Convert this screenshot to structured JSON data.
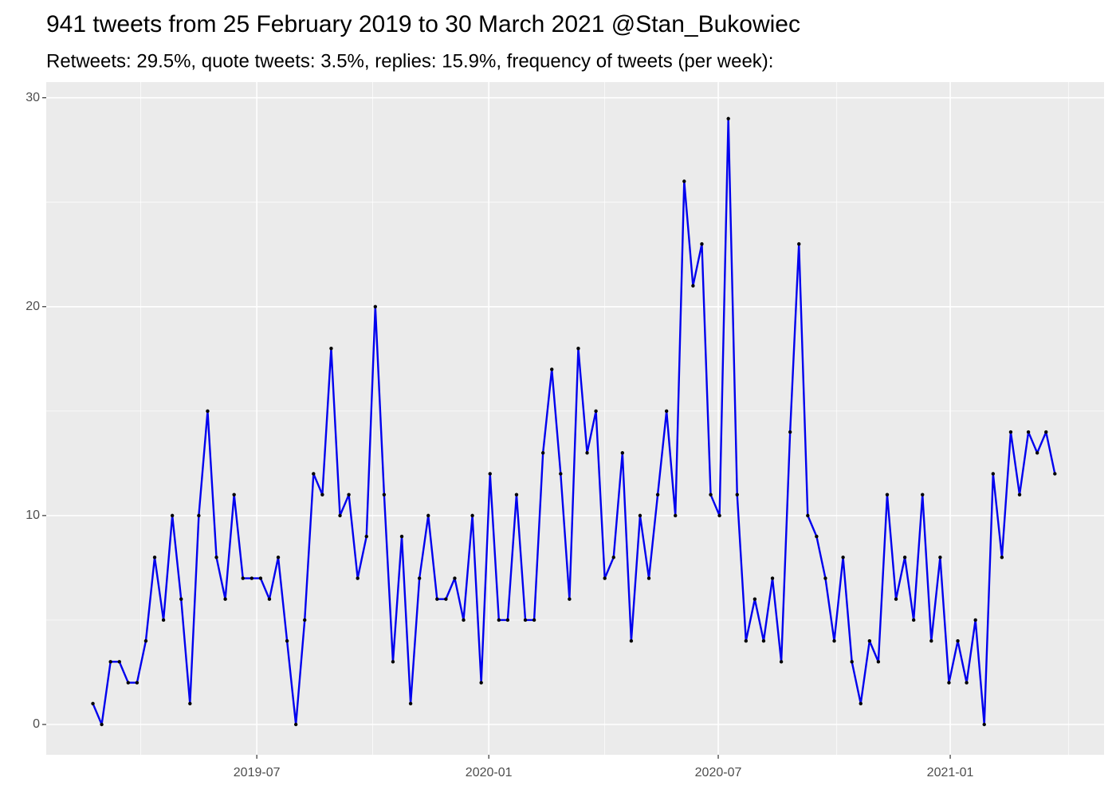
{
  "chart_data": {
    "type": "line",
    "title": "941 tweets from 25 February 2019 to 30 March 2021 @Stan_Bukowiec",
    "subtitle": "Retweets: 29.5%, quote tweets: 3.5%, replies: 15.9%, frequency of tweets (per week):",
    "x": [
      "2019-02-21",
      "2019-02-28",
      "2019-03-07",
      "2019-03-14",
      "2019-03-21",
      "2019-03-28",
      "2019-04-04",
      "2019-04-11",
      "2019-04-18",
      "2019-04-25",
      "2019-05-02",
      "2019-05-09",
      "2019-05-16",
      "2019-05-23",
      "2019-05-30",
      "2019-06-06",
      "2019-06-13",
      "2019-06-20",
      "2019-06-27",
      "2019-07-04",
      "2019-07-11",
      "2019-07-18",
      "2019-07-25",
      "2019-08-01",
      "2019-08-08",
      "2019-08-15",
      "2019-08-22",
      "2019-08-29",
      "2019-09-05",
      "2019-09-12",
      "2019-09-19",
      "2019-09-26",
      "2019-10-03",
      "2019-10-10",
      "2019-10-17",
      "2019-10-24",
      "2019-10-31",
      "2019-11-07",
      "2019-11-14",
      "2019-11-21",
      "2019-11-28",
      "2019-12-05",
      "2019-12-12",
      "2019-12-19",
      "2019-12-26",
      "2020-01-02",
      "2020-01-09",
      "2020-01-16",
      "2020-01-23",
      "2020-01-30",
      "2020-02-06",
      "2020-02-13",
      "2020-02-20",
      "2020-02-27",
      "2020-03-05",
      "2020-03-12",
      "2020-03-19",
      "2020-03-26",
      "2020-04-02",
      "2020-04-09",
      "2020-04-16",
      "2020-04-23",
      "2020-04-30",
      "2020-05-07",
      "2020-05-14",
      "2020-05-21",
      "2020-05-28",
      "2020-06-04",
      "2020-06-11",
      "2020-06-18",
      "2020-06-25",
      "2020-07-02",
      "2020-07-09",
      "2020-07-16",
      "2020-07-23",
      "2020-07-30",
      "2020-08-06",
      "2020-08-13",
      "2020-08-20",
      "2020-08-27",
      "2020-09-03",
      "2020-09-10",
      "2020-09-17",
      "2020-09-24",
      "2020-10-01",
      "2020-10-08",
      "2020-10-15",
      "2020-10-22",
      "2020-10-29",
      "2020-11-05",
      "2020-11-12",
      "2020-11-19",
      "2020-11-26",
      "2020-12-03",
      "2020-12-10",
      "2020-12-17",
      "2020-12-24",
      "2020-12-31",
      "2021-01-07",
      "2021-01-14",
      "2021-01-21",
      "2021-01-28",
      "2021-02-04",
      "2021-02-11",
      "2021-02-18",
      "2021-02-25",
      "2021-03-04",
      "2021-03-11",
      "2021-03-18",
      "2021-03-25"
    ],
    "series": [
      {
        "color": "#0000ee",
        "values": [
          1,
          0,
          3,
          3,
          2,
          2,
          4,
          8,
          5,
          10,
          6,
          1,
          10,
          15,
          8,
          6,
          11,
          7,
          7,
          7,
          6,
          8,
          4,
          0,
          5,
          12,
          11,
          18,
          10,
          11,
          7,
          9,
          20,
          11,
          3,
          9,
          1,
          7,
          10,
          6,
          6,
          7,
          5,
          10,
          2,
          12,
          5,
          5,
          11,
          5,
          5,
          13,
          17,
          12,
          6,
          18,
          13,
          15,
          7,
          8,
          13,
          4,
          10,
          7,
          11,
          15,
          10,
          26,
          21,
          23,
          11,
          10,
          29,
          11,
          4,
          6,
          4,
          7,
          3,
          14,
          23,
          10,
          9,
          7,
          4,
          8,
          3,
          1,
          4,
          3,
          11,
          6,
          8,
          5,
          11,
          4,
          8,
          2,
          4,
          2,
          5,
          0,
          12,
          8,
          14,
          11,
          14,
          13,
          14,
          12
        ]
      }
    ],
    "point_color": "#000000",
    "xlim": [
      "2019-01-15",
      "2021-05-03"
    ],
    "xticks": [
      {
        "value": "2019-07-01",
        "label": "2019-07"
      },
      {
        "value": "2020-01-01",
        "label": "2020-01"
      },
      {
        "value": "2020-07-01",
        "label": "2020-07"
      },
      {
        "value": "2021-01-01",
        "label": "2021-01"
      }
    ],
    "ylim": [
      -1.45,
      30.75
    ],
    "yticks": [
      0,
      10,
      20,
      30
    ],
    "grid": true
  }
}
